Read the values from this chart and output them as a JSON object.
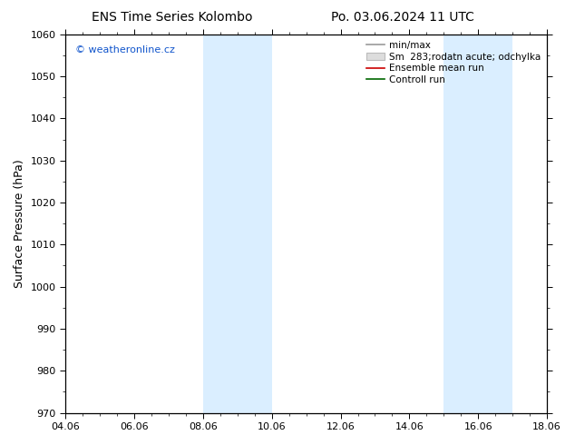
{
  "title_left": "ENS Time Series Kolombo",
  "title_right": "Po. 03.06.2024 11 UTC",
  "ylabel": "Surface Pressure (hPa)",
  "ylim": [
    970,
    1060
  ],
  "yticks": [
    970,
    980,
    990,
    1000,
    1010,
    1020,
    1030,
    1040,
    1050,
    1060
  ],
  "x_tick_labels": [
    "04.06",
    "06.06",
    "08.06",
    "10.06",
    "12.06",
    "14.06",
    "16.06",
    "18.06"
  ],
  "x_tick_positions": [
    0,
    2,
    4,
    6,
    8,
    10,
    12,
    14
  ],
  "x_lim": [
    0,
    14
  ],
  "shade_bands": [
    {
      "x_start": 4.0,
      "x_end": 5.0
    },
    {
      "x_start": 5.0,
      "x_end": 6.0
    },
    {
      "x_start": 11.0,
      "x_end": 12.0
    },
    {
      "x_start": 12.0,
      "x_end": 13.0
    }
  ],
  "shade_color": "#daeeff",
  "watermark_text": "© weatheronline.cz",
  "watermark_color": "#1155cc",
  "legend_line_color": "#999999",
  "legend_fill_color": "#dddddd",
  "legend_red": "#cc0000",
  "legend_green": "#006600",
  "background_color": "#ffffff",
  "title_fontsize": 10,
  "tick_fontsize": 8,
  "ylabel_fontsize": 9,
  "watermark_fontsize": 8,
  "legend_fontsize": 7.5
}
